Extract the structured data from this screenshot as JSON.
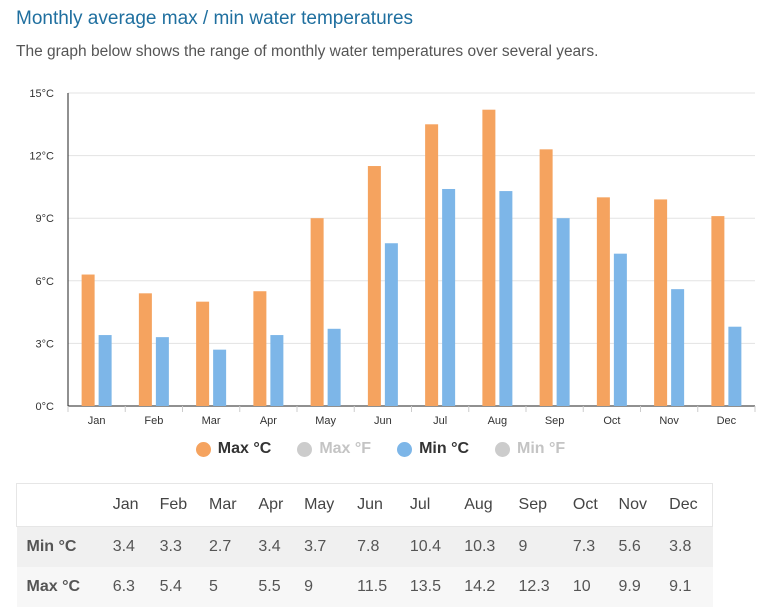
{
  "title": "Monthly average max / min water temperatures",
  "subtitle": "The graph below shows the range of monthly water temperatures over several years.",
  "colors": {
    "max": "#f5a35f",
    "min": "#7db6e8",
    "disabled": "#cccccc",
    "title": "#1f6f9f"
  },
  "legend": [
    {
      "label": "Max °C",
      "color": "#f5a35f",
      "active": true
    },
    {
      "label": "Max °F",
      "color": "#cccccc",
      "active": false
    },
    {
      "label": "Min °C",
      "color": "#7db6e8",
      "active": true
    },
    {
      "label": "Min °F",
      "color": "#cccccc",
      "active": false
    }
  ],
  "chart_data": {
    "type": "bar",
    "title": "Monthly average max / min water temperatures",
    "categories": [
      "Jan",
      "Feb",
      "Mar",
      "Apr",
      "May",
      "Jun",
      "Jul",
      "Aug",
      "Sep",
      "Oct",
      "Nov",
      "Dec"
    ],
    "series": [
      {
        "name": "Max °C",
        "values": [
          6.3,
          5.4,
          5,
          5.5,
          9,
          11.5,
          13.5,
          14.2,
          12.3,
          10,
          9.9,
          9.1
        ]
      },
      {
        "name": "Min °C",
        "values": [
          3.4,
          3.3,
          2.7,
          3.4,
          3.7,
          7.8,
          10.4,
          10.3,
          9,
          7.3,
          5.6,
          3.8
        ]
      }
    ],
    "yticks": [
      "0°C",
      "3°C",
      "6°C",
      "9°C",
      "12°C",
      "15°C"
    ],
    "ylim": [
      0,
      15
    ],
    "xlabel": "",
    "ylabel": "",
    "grid": true
  },
  "table": {
    "header": [
      "",
      "Jan",
      "Feb",
      "Mar",
      "Apr",
      "May",
      "Jun",
      "Jul",
      "Aug",
      "Sep",
      "Oct",
      "Nov",
      "Dec"
    ],
    "rows": [
      {
        "label": "Min °C",
        "values": [
          "3.4",
          "3.3",
          "2.7",
          "3.4",
          "3.7",
          "7.8",
          "10.4",
          "10.3",
          "9",
          "7.3",
          "5.6",
          "3.8"
        ]
      },
      {
        "label": "Max °C",
        "values": [
          "6.3",
          "5.4",
          "5",
          "5.5",
          "9",
          "11.5",
          "13.5",
          "14.2",
          "12.3",
          "10",
          "9.9",
          "9.1"
        ]
      }
    ]
  }
}
